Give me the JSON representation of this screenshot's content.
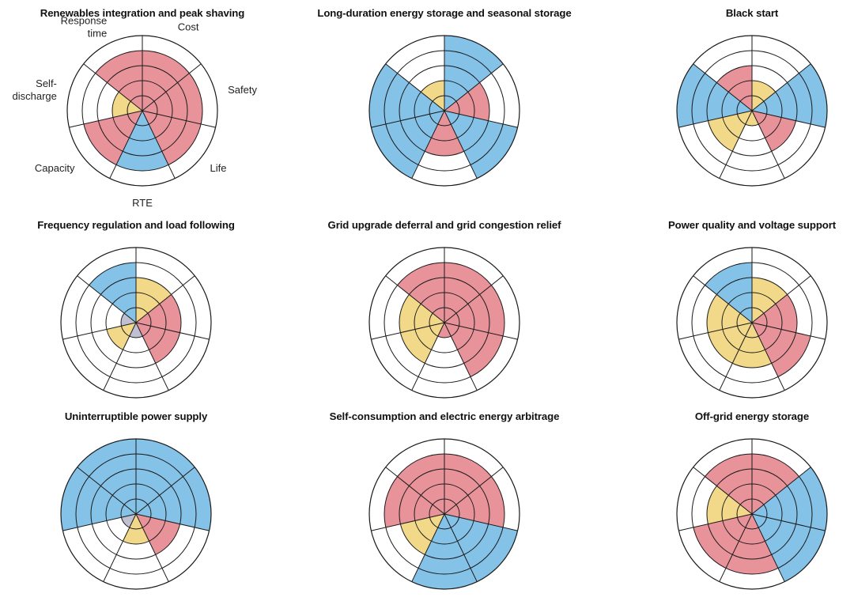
{
  "colors": {
    "red": "#E8939A",
    "blue": "#85C2E8",
    "yellow": "#F2D889",
    "grey": "#BFC1D2",
    "empty": "#FFFFFF",
    "line": "#1a1a1a"
  },
  "axis_labels": [
    "Cost",
    "Safety",
    "Life",
    "RTE",
    "Capacity",
    "Self-\ndischarge",
    "Response\ntime"
  ],
  "chart_data": [
    {
      "type": "polar-area",
      "title": "Renewables integration and peak shaving",
      "categories": [
        "Cost",
        "Safety",
        "Life",
        "RTE",
        "Capacity",
        "Self-discharge",
        "Response time"
      ],
      "values": [
        4,
        4,
        4,
        4,
        4,
        2,
        4
      ],
      "colors": [
        "red",
        "red",
        "red",
        "blue",
        "red",
        "yellow",
        "red"
      ],
      "max": 5
    },
    {
      "type": "polar-area",
      "title": "Long-duration energy storage and seasonal storage",
      "categories": [
        "Cost",
        "Safety",
        "Life",
        "RTE",
        "Capacity",
        "Self-discharge",
        "Response time"
      ],
      "values": [
        5,
        3,
        5,
        3,
        5,
        5,
        2
      ],
      "colors": [
        "blue",
        "red",
        "blue",
        "red",
        "blue",
        "blue",
        "yellow"
      ],
      "max": 5
    },
    {
      "type": "polar-area",
      "title": "Black start",
      "categories": [
        "Cost",
        "Safety",
        "Life",
        "RTE",
        "Capacity",
        "Self-discharge",
        "Response time"
      ],
      "values": [
        2,
        5,
        3,
        1,
        3,
        5,
        3
      ],
      "colors": [
        "yellow",
        "blue",
        "red",
        "yellow",
        "yellow",
        "blue",
        "red"
      ],
      "max": 5
    },
    {
      "type": "polar-area",
      "title": "Frequency regulation and load following",
      "categories": [
        "Cost",
        "Safety",
        "Life",
        "RTE",
        "Capacity",
        "Self-discharge",
        "Response time"
      ],
      "values": [
        3,
        3,
        3,
        1,
        2,
        1,
        4
      ],
      "colors": [
        "yellow",
        "red",
        "red",
        "grey",
        "yellow",
        "grey",
        "blue"
      ],
      "max": 5
    },
    {
      "type": "polar-area",
      "title": "Grid upgrade deferral and grid congestion relief",
      "categories": [
        "Cost",
        "Safety",
        "Life",
        "RTE",
        "Capacity",
        "Self-discharge",
        "Response time"
      ],
      "values": [
        4,
        4,
        4,
        1,
        3,
        3,
        4
      ],
      "colors": [
        "red",
        "red",
        "red",
        "red",
        "yellow",
        "yellow",
        "red"
      ],
      "max": 5
    },
    {
      "type": "polar-area",
      "title": "Power quality and voltage support",
      "categories": [
        "Cost",
        "Safety",
        "Life",
        "RTE",
        "Capacity",
        "Self-discharge",
        "Response time"
      ],
      "values": [
        3,
        3,
        4,
        3,
        3,
        3,
        4
      ],
      "colors": [
        "yellow",
        "red",
        "red",
        "yellow",
        "yellow",
        "yellow",
        "blue"
      ],
      "max": 5
    },
    {
      "type": "polar-area",
      "title": "Uninterruptible power supply",
      "categories": [
        "Cost",
        "Safety",
        "Life",
        "RTE",
        "Capacity",
        "Self-discharge",
        "Response time"
      ],
      "values": [
        5,
        5,
        3,
        2,
        1,
        5,
        5
      ],
      "colors": [
        "blue",
        "blue",
        "red",
        "yellow",
        "grey",
        "blue",
        "blue"
      ],
      "max": 5
    },
    {
      "type": "polar-area",
      "title": "Self-consumption and electric energy arbitrage",
      "categories": [
        "Cost",
        "Safety",
        "Life",
        "RTE",
        "Capacity",
        "Self-discharge",
        "Response time"
      ],
      "values": [
        4,
        4,
        5,
        5,
        3,
        4,
        4
      ],
      "colors": [
        "red",
        "red",
        "blue",
        "blue",
        "yellow",
        "red",
        "red"
      ],
      "max": 5
    },
    {
      "type": "polar-area",
      "title": "Off-grid energy storage",
      "categories": [
        "Cost",
        "Safety",
        "Life",
        "RTE",
        "Capacity",
        "Self-discharge",
        "Response time"
      ],
      "values": [
        4,
        5,
        5,
        4,
        4,
        3,
        4
      ],
      "colors": [
        "red",
        "blue",
        "blue",
        "red",
        "red",
        "yellow",
        "red"
      ],
      "max": 5
    }
  ]
}
